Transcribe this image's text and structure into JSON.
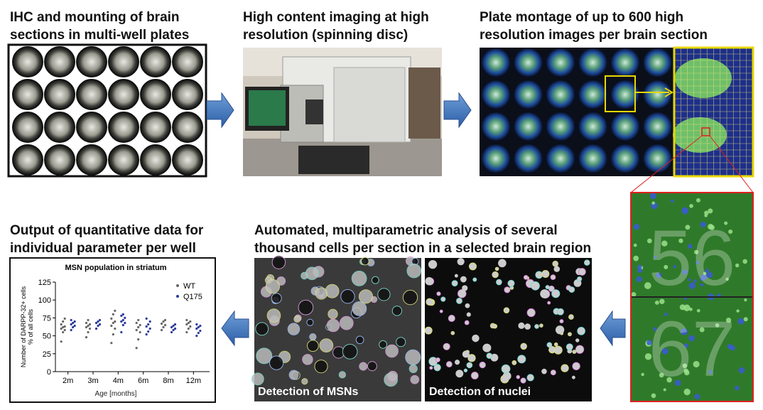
{
  "steps": [
    {
      "caption": [
        "IHC and mounting of brain",
        "sections in multi-well plates"
      ]
    },
    {
      "caption": [
        "High content imaging at high",
        "resolution (spinning disc)"
      ]
    },
    {
      "caption": [
        "Plate montage of up to 600 high",
        "resolution images per brain section"
      ]
    },
    {
      "caption": [
        "Automated, multiparametric analysis of several",
        "thousand cells per section in a selected brain region"
      ]
    },
    {
      "caption": [
        "Output of quantitative data for",
        "individual parameter per well"
      ]
    }
  ],
  "zoom_labels": [
    "56",
    "67"
  ],
  "image_labels": [
    "Detection of MSNs",
    "Detection of nuclei"
  ],
  "chart": {
    "type": "scatter",
    "title": "MSN population in striatum",
    "y_label": [
      "Number of DARPP-32+ cells",
      "% of all cells"
    ],
    "x_label": "Age [months]",
    "categories": [
      "2m",
      "3m",
      "4m",
      "6m",
      "8m",
      "12m"
    ],
    "ylim": [
      0,
      125
    ],
    "yticks": [
      0,
      25,
      50,
      75,
      100,
      125
    ],
    "legend": "top-right",
    "series": [
      {
        "name": "WT",
        "color": "#666666",
        "values": [
          [
            42,
            55,
            58,
            60,
            62,
            63,
            66,
            70,
            74
          ],
          [
            48,
            55,
            60,
            62,
            64,
            66,
            68,
            72
          ],
          [
            40,
            52,
            60,
            64,
            68,
            70,
            74,
            80,
            85
          ],
          [
            33,
            45,
            55,
            58,
            62,
            65,
            68,
            72
          ],
          [
            58,
            62,
            65,
            67,
            70,
            72
          ],
          [
            55,
            60,
            63,
            66,
            68,
            70,
            72
          ]
        ]
      },
      {
        "name": "Q175",
        "color": "#2b3a9a",
        "values": [
          [
            58,
            62,
            64,
            66,
            68,
            70,
            72
          ],
          [
            60,
            64,
            66,
            68,
            70,
            72
          ],
          [
            55,
            65,
            68,
            70,
            72,
            75,
            78,
            80
          ],
          [
            52,
            56,
            60,
            63,
            66,
            70,
            74
          ],
          [
            55,
            58,
            60,
            62,
            64,
            66
          ],
          [
            50,
            54,
            57,
            60,
            62,
            64,
            66
          ]
        ]
      }
    ]
  }
}
